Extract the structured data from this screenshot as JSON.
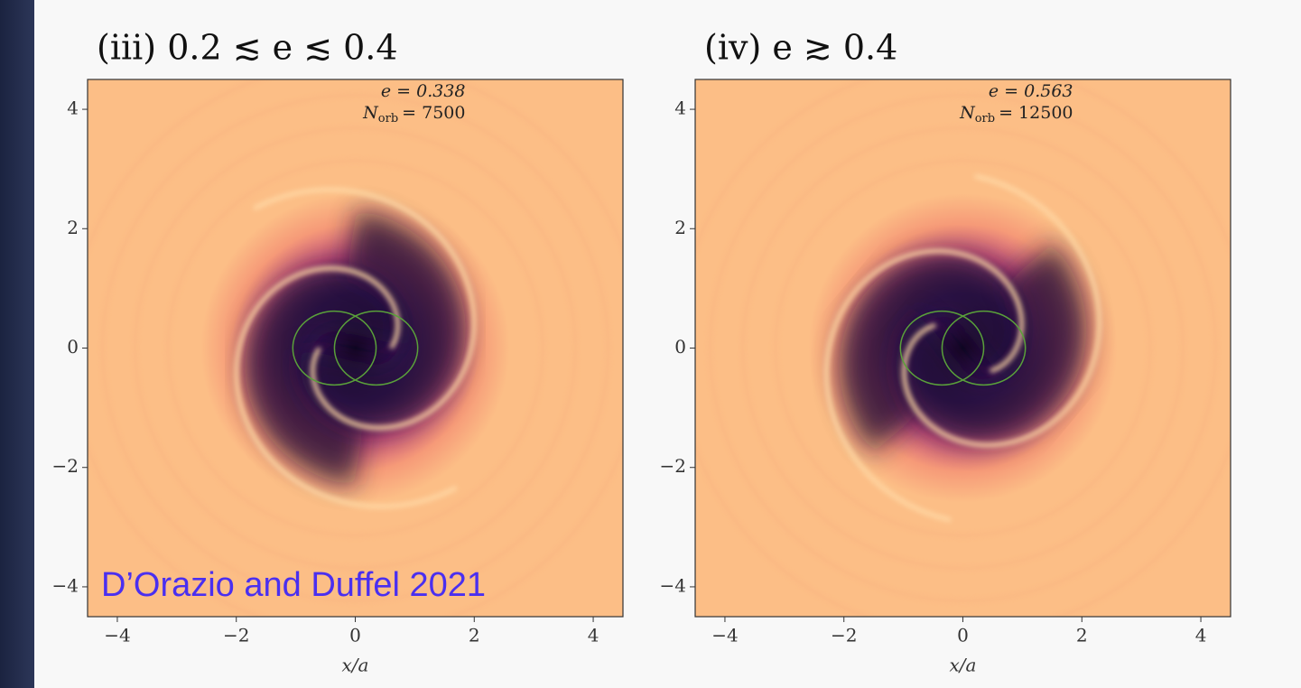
{
  "panels": [
    {
      "title": "(iii) 0.2 ≲ e ≲ 0.4",
      "e_text": "e = 0.338",
      "norb_symbol": "N",
      "norb_sub": "orb",
      "norb_text": "= 7500",
      "xlabel": "x/a",
      "xlim": [
        -4.5,
        4.5
      ],
      "ylim": [
        -4.5,
        4.5
      ],
      "xticks": [
        {
          "value": -4,
          "label": "−4"
        },
        {
          "value": -2,
          "label": "−2"
        },
        0,
        2,
        4
      ],
      "yticks": [
        {
          "value": -4,
          "label": "−4"
        },
        {
          "value": -2,
          "label": "−2"
        },
        0,
        2,
        4
      ],
      "citation": "D’Orazio and Duffel 2021"
    },
    {
      "title": "(iv) e ≳ 0.4",
      "e_text": "e = 0.563",
      "norb_symbol": "N",
      "norb_sub": "orb",
      "norb_text": "= 12500",
      "xlabel": "x/a",
      "xlim": [
        -4.5,
        4.5
      ],
      "ylim": [
        -4.5,
        4.5
      ],
      "xticks": [
        {
          "value": -4,
          "label": "−4"
        },
        {
          "value": -2,
          "label": "−2"
        },
        0,
        2,
        4
      ],
      "yticks": [
        {
          "value": -4,
          "label": "−4"
        },
        {
          "value": -2,
          "label": "−2"
        },
        0,
        2,
        4
      ]
    }
  ]
}
